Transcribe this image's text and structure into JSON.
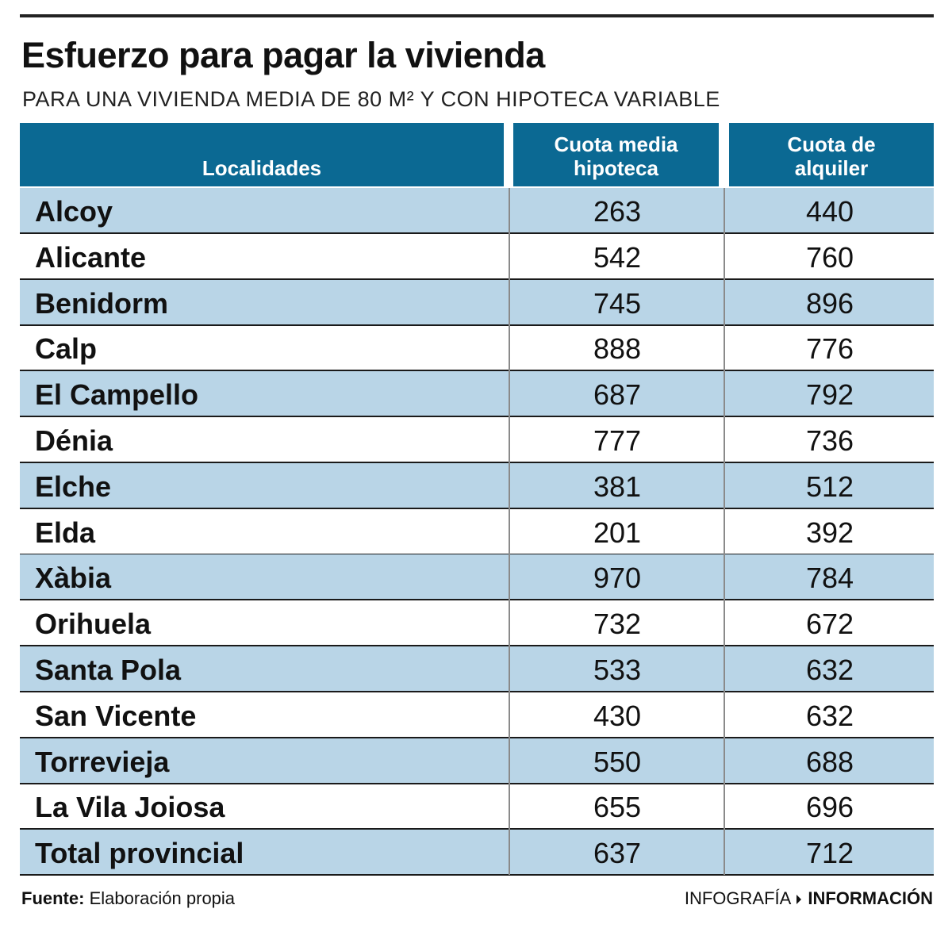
{
  "header": {
    "title": "Esfuerzo para pagar la vivienda",
    "subtitle": "PARA UNA VIVIENDA MEDIA DE 80 M² Y CON HIPOTECA VARIABLE"
  },
  "table": {
    "columns": [
      "Localidades",
      "Cuota media hipoteca",
      "Cuota de alquiler"
    ],
    "rows": [
      [
        "Alcoy",
        263,
        440
      ],
      [
        "Alicante",
        542,
        760
      ],
      [
        "Benidorm",
        745,
        896
      ],
      [
        "Calp",
        888,
        776
      ],
      [
        "El Campello",
        687,
        792
      ],
      [
        "Dénia",
        777,
        736
      ],
      [
        "Elche",
        381,
        512
      ],
      [
        "Elda",
        201,
        392
      ],
      [
        "Xàbia",
        970,
        784
      ],
      [
        "Orihuela",
        732,
        672
      ],
      [
        "Santa Pola",
        533,
        632
      ],
      [
        "San Vicente",
        430,
        632
      ],
      [
        "Torrevieja",
        550,
        688
      ],
      [
        "La Vila Joiosa",
        655,
        696
      ],
      [
        "Total provincial",
        637,
        712
      ]
    ]
  },
  "footer": {
    "source_label": "Fuente:",
    "source": "Elaboración propia",
    "credit_label": "INFOGRAFÍA",
    "credit": "INFORMACIÓN"
  }
}
